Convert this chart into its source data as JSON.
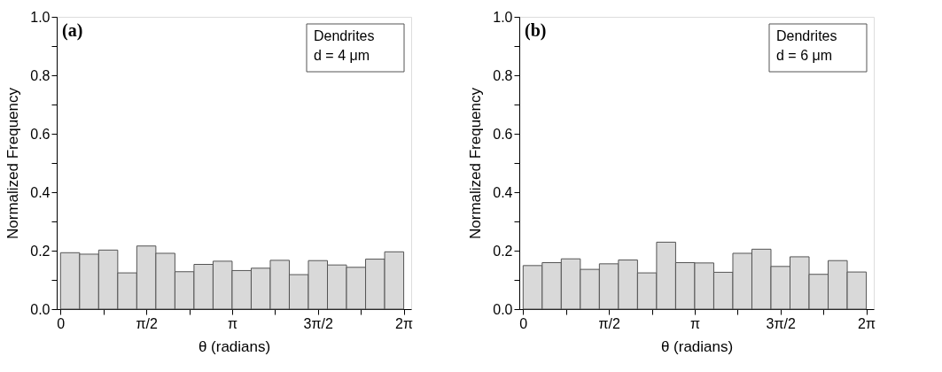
{
  "chart_data": [
    {
      "type": "histogram",
      "xlabel": "θ (radians)",
      "ylabel": "Normalized Frequency",
      "bins": [
        0,
        0.349066,
        0.698132,
        1.047198,
        1.396263,
        1.745329,
        2.094395,
        2.443461,
        2.792527,
        3.141593,
        3.490659,
        3.839724,
        4.18879,
        4.537856,
        4.886922,
        5.235988,
        5.585054,
        5.934119,
        6.283185
      ],
      "values": [
        0.193,
        0.188,
        0.202,
        0.124,
        0.216,
        0.191,
        0.128,
        0.153,
        0.164,
        0.132,
        0.14,
        0.167,
        0.118,
        0.166,
        0.151,
        0.143,
        0.171,
        0.196
      ],
      "color": "#d9d9d9",
      "xlim": [
        -0.07,
        6.42
      ],
      "ylim": [
        0,
        1.0
      ],
      "xticks": [
        {
          "value": 0,
          "label": "0"
        },
        {
          "value": 0.785398,
          "label": null
        },
        {
          "value": 1.570796,
          "label": "π/2"
        },
        {
          "value": 2.356194,
          "label": null
        },
        {
          "value": 3.141593,
          "label": "π"
        },
        {
          "value": 3.926991,
          "label": null
        },
        {
          "value": 4.712389,
          "label": "3π/2"
        },
        {
          "value": 5.497787,
          "label": null
        },
        {
          "value": 6.283185,
          "label": "2π"
        }
      ],
      "yticks": [
        {
          "value": 0,
          "label": "0.0"
        },
        {
          "value": 0.1,
          "label": null
        },
        {
          "value": 0.2,
          "label": "0.2"
        },
        {
          "value": 0.3,
          "label": null
        },
        {
          "value": 0.4,
          "label": "0.4"
        },
        {
          "value": 0.5,
          "label": null
        },
        {
          "value": 0.6,
          "label": "0.6"
        },
        {
          "value": 0.7,
          "label": null
        },
        {
          "value": 0.8,
          "label": "0.8"
        },
        {
          "value": 0.9,
          "label": null
        },
        {
          "value": 1.0,
          "label": "1.0"
        }
      ],
      "grid": false,
      "annotations": [
        "(a)",
        "Dendrites",
        "d = 4 μm"
      ]
    },
    {
      "type": "histogram",
      "xlabel": "θ (radians)",
      "ylabel": "Normalized Frequency",
      "bins": [
        0,
        0.349066,
        0.698132,
        1.047198,
        1.396263,
        1.745329,
        2.094395,
        2.443461,
        2.792527,
        3.141593,
        3.490659,
        3.839724,
        4.18879,
        4.537856,
        4.886922,
        5.235988,
        5.585054,
        5.934119,
        6.283185
      ],
      "values": [
        0.149,
        0.159,
        0.172,
        0.136,
        0.155,
        0.168,
        0.124,
        0.229,
        0.159,
        0.158,
        0.126,
        0.191,
        0.205,
        0.146,
        0.179,
        0.119,
        0.166,
        0.127
      ],
      "color": "#d9d9d9",
      "xlim": [
        -0.07,
        6.42
      ],
      "ylim": [
        0,
        1.0
      ],
      "xticks": [
        {
          "value": 0,
          "label": "0"
        },
        {
          "value": 0.785398,
          "label": null
        },
        {
          "value": 1.570796,
          "label": "π/2"
        },
        {
          "value": 2.356194,
          "label": null
        },
        {
          "value": 3.141593,
          "label": "π"
        },
        {
          "value": 3.926991,
          "label": null
        },
        {
          "value": 4.712389,
          "label": "3π/2"
        },
        {
          "value": 5.497787,
          "label": null
        },
        {
          "value": 6.283185,
          "label": "2π"
        }
      ],
      "yticks": [
        {
          "value": 0,
          "label": "0.0"
        },
        {
          "value": 0.1,
          "label": null
        },
        {
          "value": 0.2,
          "label": "0.2"
        },
        {
          "value": 0.3,
          "label": null
        },
        {
          "value": 0.4,
          "label": "0.4"
        },
        {
          "value": 0.5,
          "label": null
        },
        {
          "value": 0.6,
          "label": "0.6"
        },
        {
          "value": 0.7,
          "label": null
        },
        {
          "value": 0.8,
          "label": "0.8"
        },
        {
          "value": 0.9,
          "label": null
        },
        {
          "value": 1.0,
          "label": "1.0"
        }
      ],
      "grid": false,
      "annotations": [
        "(b)",
        "Dendrites",
        "d = 6 μm"
      ]
    }
  ]
}
